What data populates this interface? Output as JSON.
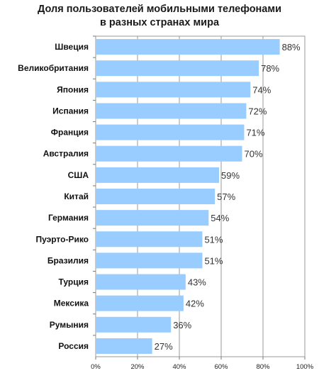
{
  "chart_data": {
    "type": "bar",
    "orientation": "horizontal",
    "title_lines": [
      "Доля пользователей мобильными телефонами",
      "в разных странах мира"
    ],
    "categories": [
      "Швеция",
      "Великобритания",
      "Япония",
      "Испания",
      "Франция",
      "Австралия",
      "США",
      "Китай",
      "Германия",
      "Пуэрто-Рико",
      "Бразилия",
      "Турция",
      "Мексика",
      "Румыния",
      "Россия"
    ],
    "values": [
      88,
      78,
      74,
      72,
      71,
      70,
      59,
      57,
      54,
      51,
      51,
      43,
      42,
      36,
      27
    ],
    "value_labels": [
      "88%",
      "78%",
      "74%",
      "72%",
      "71%",
      "70%",
      "59%",
      "57%",
      "54%",
      "51%",
      "51%",
      "43%",
      "42%",
      "36%",
      "27%"
    ],
    "xlim": [
      0,
      100
    ],
    "xticks": [
      "0%",
      "20%",
      "40%",
      "60%",
      "80%",
      "100%"
    ],
    "grid": true,
    "bar_color": "#99ccff"
  }
}
